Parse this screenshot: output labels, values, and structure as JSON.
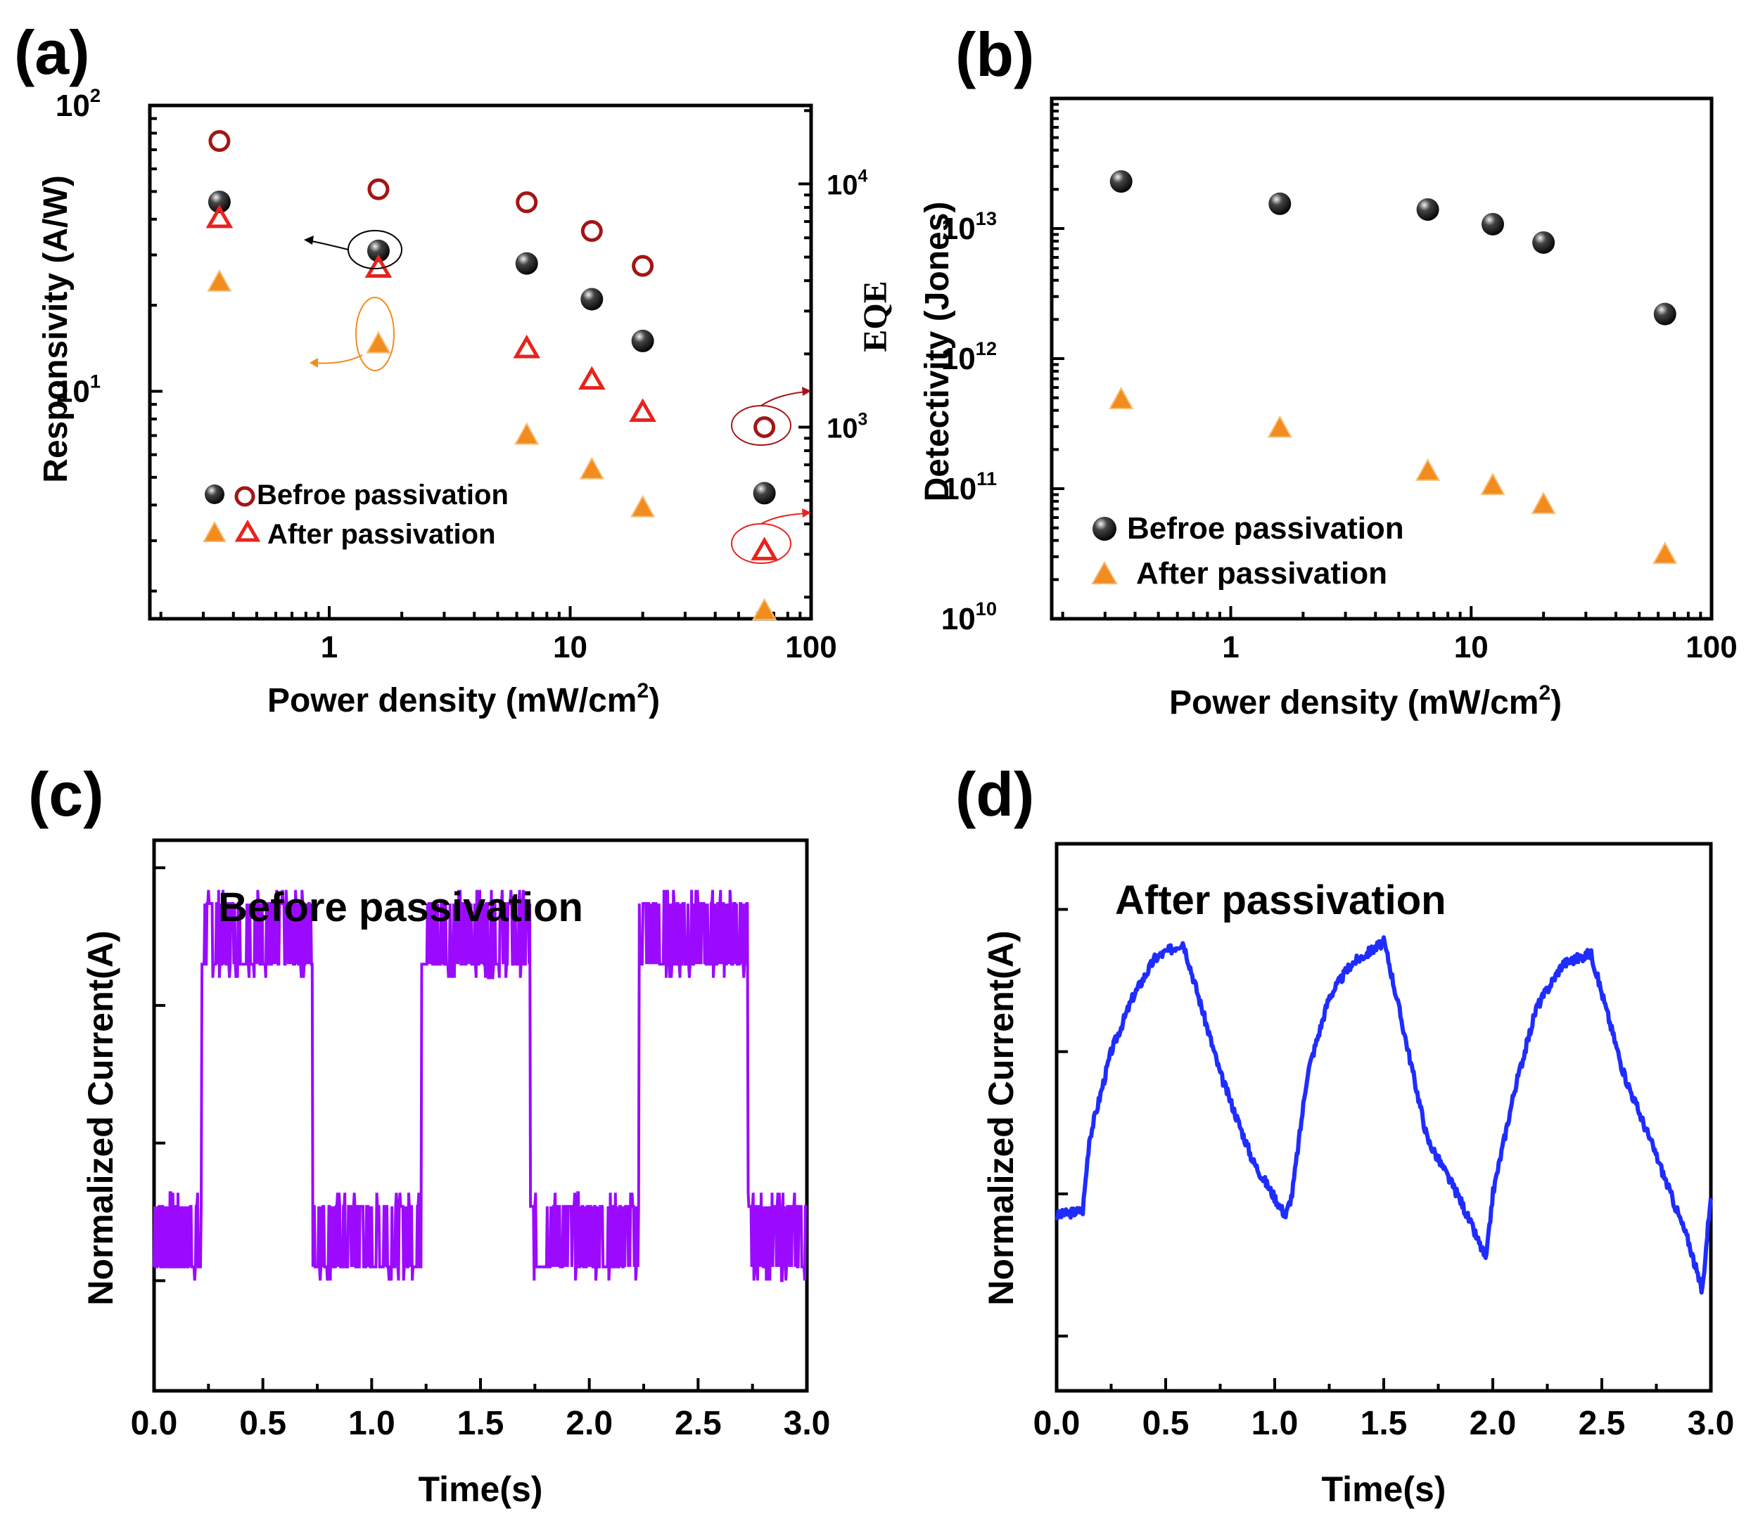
{
  "colors": {
    "before": "#111111",
    "before_eqe": "#a31515",
    "after": "#f28c1e",
    "after_eqe": "#e8231d",
    "trace_c": "#9b0aff",
    "trace_d": "#1f2cff"
  },
  "chart_data": [
    {
      "panel": "(a)",
      "type": "scatter",
      "xlabel": "Power density (mW/cm",
      "xlabel_sup": "2",
      "xlabel_close": ")",
      "ylabel": "Responsivity (A/W)",
      "y2label": "EQE",
      "xscale": "log",
      "yscale": "log",
      "xlim": [
        0.18,
        100
      ],
      "ylim": [
        1.6,
        100
      ],
      "y2lim": [
        163,
        21000
      ],
      "xticks": [
        {
          "v": 1,
          "label": "1"
        },
        {
          "v": 10,
          "label": "10"
        },
        {
          "v": 100,
          "label": "100"
        }
      ],
      "yticks": [
        {
          "v": 10,
          "base": "10",
          "exp": "1"
        },
        {
          "v": 100,
          "base": "10",
          "exp": "2"
        }
      ],
      "y2ticks": [
        {
          "v": 1000,
          "base": "10",
          "exp": "3"
        },
        {
          "v": 10000,
          "base": "10",
          "exp": "4"
        }
      ],
      "x": [
        0.35,
        1.6,
        6.6,
        12.3,
        20,
        64
      ],
      "series": [
        {
          "name": "Responsivity before",
          "axis": "y",
          "marker": "ball",
          "color": "before",
          "values": [
            46,
            31,
            28,
            21,
            15,
            4.4
          ]
        },
        {
          "name": "EQE before",
          "axis": "y2",
          "marker": "ring",
          "color": "before_eqe",
          "values": [
            15000,
            9500,
            8400,
            6400,
            4600,
            1000
          ]
        },
        {
          "name": "Responsivity after",
          "axis": "y",
          "marker": "tri",
          "color": "after",
          "values": [
            24,
            14.6,
            7,
            5.3,
            3.9,
            1.7
          ]
        },
        {
          "name": "EQE after",
          "axis": "y2",
          "marker": "tri-open",
          "color": "after_eqe",
          "values": [
            7200,
            4500,
            2100,
            1560,
            1150,
            310
          ]
        }
      ],
      "legend": [
        "Befroe passivation",
        "After passivation"
      ]
    },
    {
      "panel": "(b)",
      "type": "scatter",
      "xlabel": "Power density (mW/cm",
      "xlabel_sup": "2",
      "xlabel_close": ")",
      "ylabel": "Detectivity (Jones)",
      "xscale": "log",
      "yscale": "log",
      "xlim": [
        0.18,
        100
      ],
      "ylim": [
        10000000000.0,
        100000000000000.0
      ],
      "xticks": [
        {
          "v": 1,
          "label": "1"
        },
        {
          "v": 10,
          "label": "10"
        },
        {
          "v": 100,
          "label": "100"
        }
      ],
      "yticks": [
        {
          "v": 10000000000.0,
          "base": "10",
          "exp": "10"
        },
        {
          "v": 100000000000.0,
          "base": "10",
          "exp": "11"
        },
        {
          "v": 1000000000000.0,
          "base": "10",
          "exp": "12"
        },
        {
          "v": 10000000000000.0,
          "base": "10",
          "exp": "13"
        }
      ],
      "x": [
        0.35,
        1.6,
        6.6,
        12.3,
        20,
        64
      ],
      "series": [
        {
          "name": "Befroe passivation",
          "marker": "ball",
          "color": "before",
          "values": [
            23000000000000.0,
            15500000000000.0,
            14000000000000.0,
            10800000000000.0,
            7800000000000.0,
            2200000000000.0
          ]
        },
        {
          "name": "After passivation",
          "marker": "tri",
          "color": "after",
          "values": [
            480000000000.0,
            290000000000.0,
            135000000000.0,
            105000000000.0,
            75000000000.0,
            31000000000.0
          ]
        }
      ],
      "legend": [
        "Befroe passivation",
        "After passivation"
      ]
    },
    {
      "panel": "(c)",
      "type": "line",
      "title": "Before passivation",
      "xlabel": "Time(s)",
      "ylabel": "Normalized Current(A)",
      "xlim": [
        0,
        3
      ],
      "ylim": [
        0,
        1
      ],
      "xticks": [
        "0.0",
        "0.5",
        "1.0",
        "1.5",
        "2.0",
        "2.5",
        "3.0"
      ],
      "waveform": "square",
      "on_intervals": [
        [
          0.22,
          0.73
        ],
        [
          1.23,
          1.73
        ],
        [
          1.73,
          1.73
        ],
        [
          2.23,
          2.73
        ]
      ],
      "low_level": 0.28,
      "high_level": 0.83,
      "noise_band": 0.11,
      "color": "trace_c"
    },
    {
      "panel": "(d)",
      "type": "line",
      "title": "After passivation",
      "xlabel": "Time(s)",
      "ylabel": "Normalized Current(A)",
      "xlim": [
        0,
        3
      ],
      "ylim": [
        0,
        1
      ],
      "xticks": [
        "0.0",
        "0.5",
        "1.0",
        "1.5",
        "2.0",
        "2.5",
        "3.0"
      ],
      "waveform": "rise-decay",
      "x": [
        0,
        0.12,
        0.15,
        0.25,
        0.35,
        0.45,
        0.58,
        0.75,
        0.9,
        1.05,
        1.08,
        1.15,
        1.25,
        1.35,
        1.5,
        1.52,
        1.7,
        1.85,
        1.97,
        2.0,
        2.1,
        2.2,
        2.32,
        2.45,
        2.6,
        2.75,
        2.9,
        2.96,
        3.0
      ],
      "y": [
        0.32,
        0.33,
        0.46,
        0.62,
        0.72,
        0.79,
        0.82,
        0.58,
        0.42,
        0.32,
        0.36,
        0.58,
        0.72,
        0.78,
        0.82,
        0.79,
        0.46,
        0.35,
        0.24,
        0.36,
        0.55,
        0.7,
        0.78,
        0.8,
        0.58,
        0.43,
        0.27,
        0.18,
        0.36
      ],
      "color": "trace_d"
    }
  ]
}
